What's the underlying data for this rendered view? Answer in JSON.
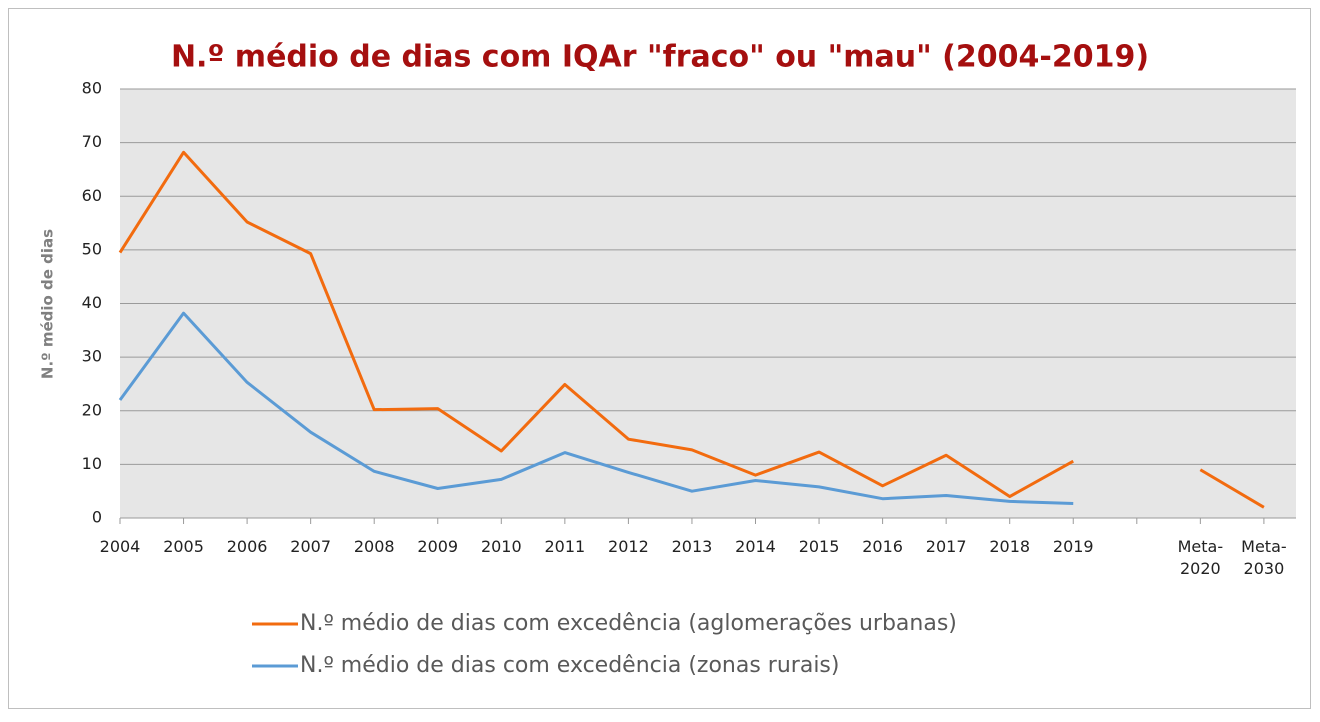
{
  "chart_data": {
    "type": "line",
    "title": "N.º médio de dias com IQAr \"fraco\" ou \"mau\" (2004-2019)",
    "y_label": "N.º médio de dias",
    "categories": [
      "2004",
      "2005",
      "2006",
      "2007",
      "2008",
      "2009",
      "2010",
      "2011",
      "2012",
      "2013",
      "2014",
      "2015",
      "2016",
      "2017",
      "2018",
      "2019",
      null,
      "Meta-2020",
      "Meta-2030"
    ],
    "series": [
      {
        "name": "N.º médio de dias com excedência (aglomerações urbanas)",
        "color": "#f26b0f",
        "values": [
          49.5,
          68.2,
          55.2,
          49.3,
          20.2,
          20.4,
          12.5,
          24.9,
          14.7,
          12.7,
          8.0,
          12.3,
          6.0,
          11.7,
          4.0,
          10.6,
          null,
          9.0,
          2.0
        ]
      },
      {
        "name": "N.º médio de dias com excedência (zonas rurais)",
        "color": "#5b9bd5",
        "values": [
          22.0,
          38.2,
          25.3,
          16.0,
          8.7,
          5.5,
          7.2,
          12.2,
          8.5,
          5.0,
          7.0,
          5.8,
          3.6,
          4.2,
          3.1,
          2.7,
          null,
          null,
          null
        ]
      }
    ],
    "ylim": [
      0,
      80
    ],
    "yticks": [
      0,
      10,
      20,
      30,
      40,
      50,
      60,
      70,
      80
    ],
    "grid": true,
    "legend": "bottom"
  }
}
